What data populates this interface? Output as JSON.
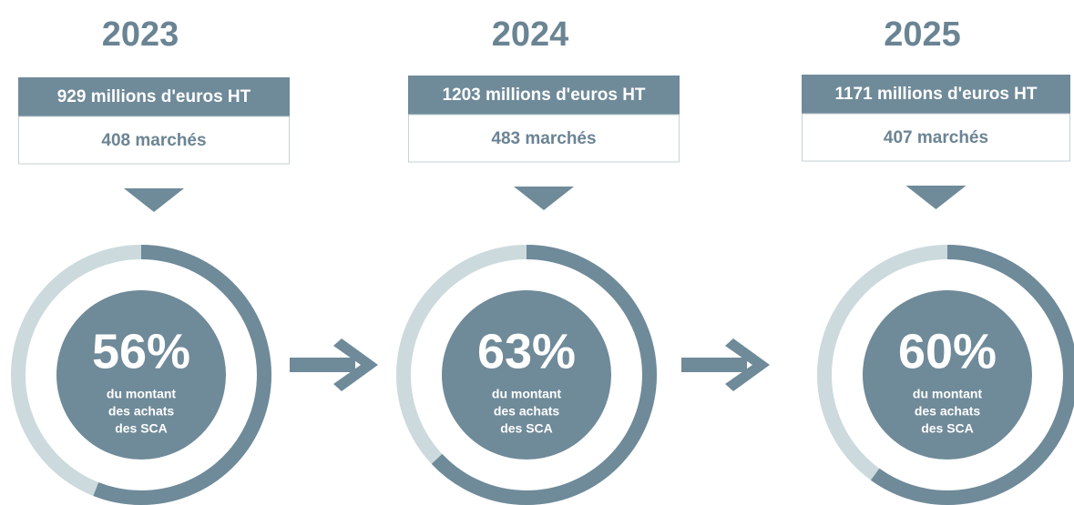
{
  "panels": [
    {
      "year": "2023",
      "amount": "929 millions d'euros HT",
      "markets": "408 marchés",
      "percent": 56,
      "percent_label": "56%",
      "caption": [
        "du montant",
        "des achats",
        "des SCA"
      ]
    },
    {
      "year": "2024",
      "amount": "1203 millions d'euros HT",
      "markets": "483 marchés",
      "percent": 63,
      "percent_label": "63%",
      "caption": [
        "du montant",
        "des achats",
        "des SCA"
      ]
    },
    {
      "year": "2025",
      "amount": "1171 millions d'euros HT",
      "markets": "407 marchés",
      "percent": 60,
      "percent_label": "60%",
      "caption": [
        "du montant",
        "des achats",
        "des SCA"
      ]
    }
  ]
}
